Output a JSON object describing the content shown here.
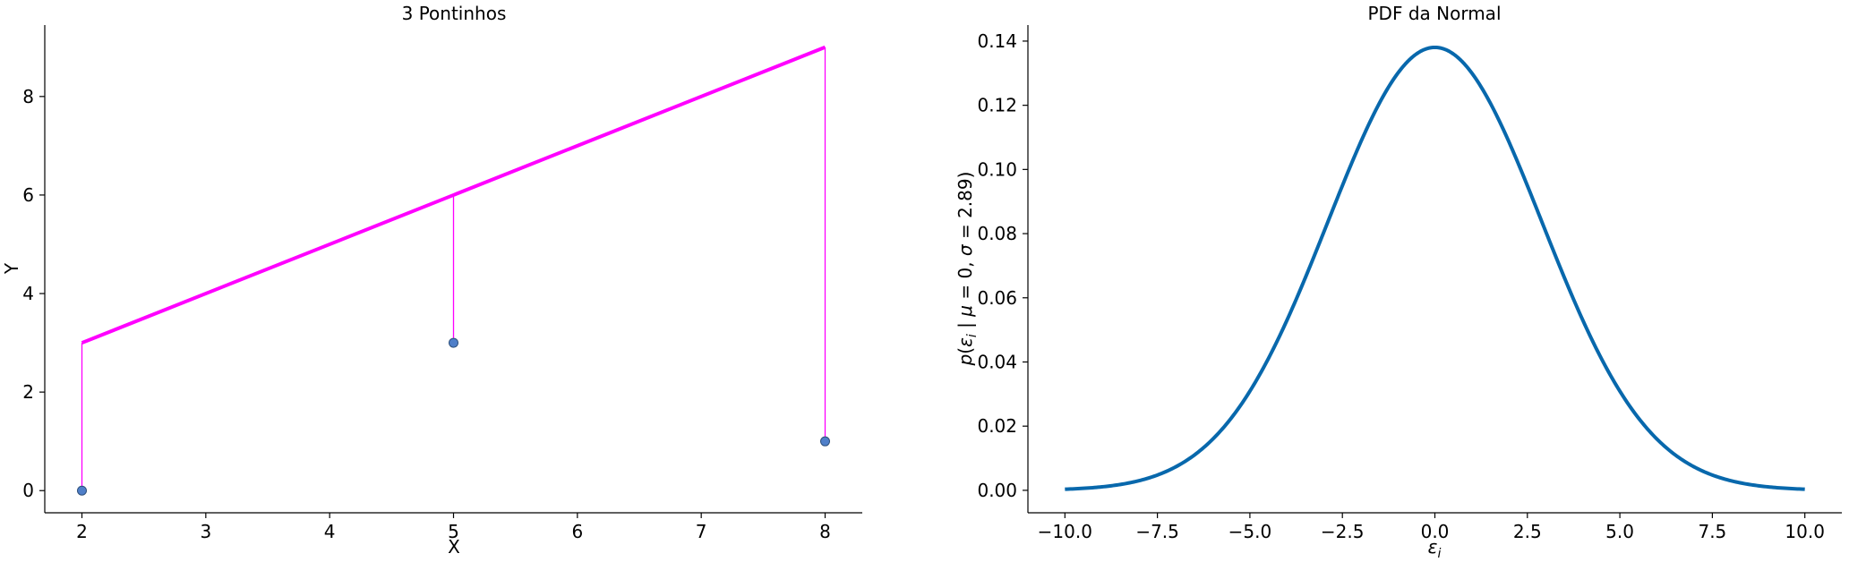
{
  "chart_data": [
    {
      "type": "scatter",
      "title": "3 Pontinhos",
      "xlabel": "X",
      "ylabel": "Y",
      "xlim": [
        1.7,
        8.3
      ],
      "ylim": [
        -0.45,
        9.45
      ],
      "xticks": [
        2,
        3,
        4,
        5,
        6,
        7,
        8
      ],
      "yticks": [
        0,
        2,
        4,
        6,
        8
      ],
      "xtick_labels": [
        "2",
        "3",
        "4",
        "5",
        "6",
        "7",
        "8"
      ],
      "ytick_labels": [
        "0",
        "2",
        "4",
        "6",
        "8"
      ],
      "grid": false,
      "points": {
        "x": [
          2,
          5,
          8
        ],
        "y": [
          0,
          3,
          1
        ]
      },
      "fit_line": {
        "x": [
          2,
          5,
          8
        ],
        "y": [
          3,
          6,
          9
        ]
      },
      "residuals": [
        {
          "x": 2,
          "y_from": 0,
          "y_to": 3
        },
        {
          "x": 5,
          "y_from": 3,
          "y_to": 6
        },
        {
          "x": 8,
          "y_from": 1,
          "y_to": 9
        }
      ],
      "colors": {
        "points": "#4f7fc9",
        "point_edge": "#2d4f7a",
        "line": "#ff00ff"
      }
    },
    {
      "type": "line",
      "title": "PDF da Normal",
      "xlabel": "εi",
      "ylabel": "p(εi | μ = 0, σ = 2.89)",
      "xlim": [
        -11,
        11
      ],
      "ylim": [
        -0.007,
        0.145
      ],
      "xticks": [
        -10,
        -7.5,
        -5,
        -2.5,
        0,
        2.5,
        5,
        7.5,
        10
      ],
      "yticks": [
        0,
        0.02,
        0.04,
        0.06,
        0.08,
        0.1,
        0.12,
        0.14
      ],
      "xtick_labels": [
        "−10.0",
        "−7.5",
        "−5.0",
        "−2.5",
        "0.0",
        "2.5",
        "5.0",
        "7.5",
        "10.0"
      ],
      "ytick_labels": [
        "0.00",
        "0.02",
        "0.04",
        "0.06",
        "0.08",
        "0.10",
        "0.12",
        "0.14"
      ],
      "grid": false,
      "distribution": {
        "mu": 0,
        "sigma": 2.89
      },
      "x_range": [
        -10,
        10
      ],
      "colors": {
        "line": "#0868ac"
      }
    }
  ]
}
